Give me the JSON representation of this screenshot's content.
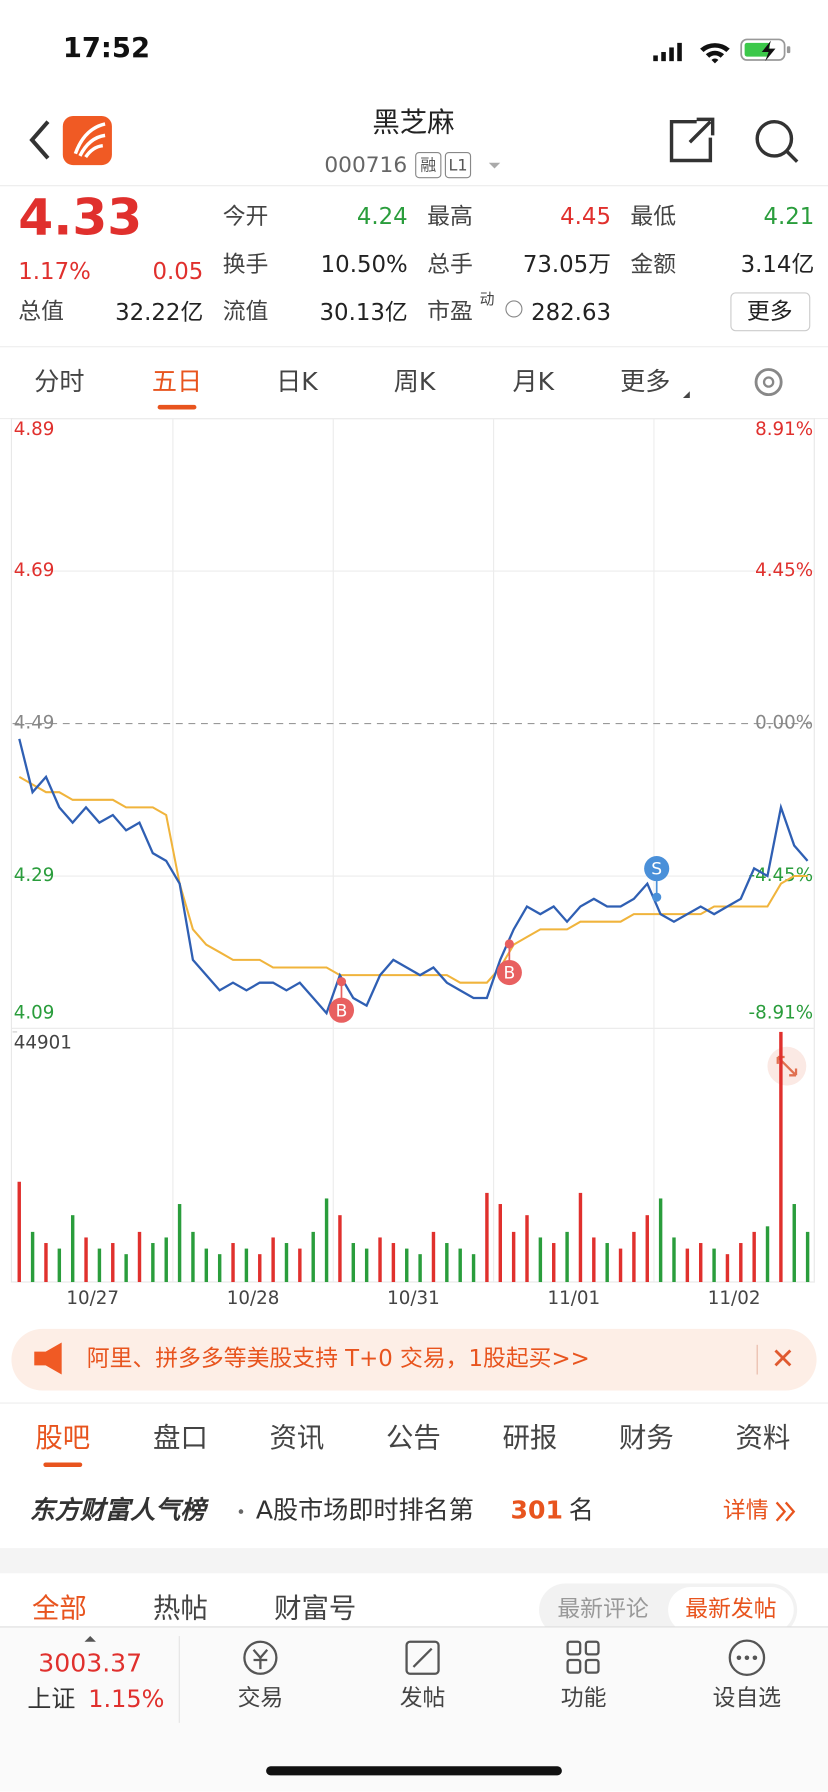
{
  "status_bar": {
    "time": "17:52"
  },
  "header": {
    "title": "黑芝麻",
    "code": "000716",
    "badges": [
      "融",
      "L1"
    ]
  },
  "quote": {
    "price": "4.33",
    "change_pct": "1.17%",
    "change": "0.05",
    "fields": [
      {
        "label": "今开",
        "value": "4.24"
      },
      {
        "label": "最高",
        "value": "4.45"
      },
      {
        "label": "最低",
        "value": "4.21"
      },
      {
        "label": "换手",
        "value": "10.50%"
      },
      {
        "label": "总手",
        "value": "73.05万"
      },
      {
        "label": "金额",
        "value": "3.14亿"
      },
      {
        "label": "总值",
        "value": "32.22亿"
      },
      {
        "label": "流值",
        "value": "30.13亿"
      },
      {
        "label": "市盈",
        "sup": "动",
        "value": "282.63"
      }
    ],
    "more": "更多"
  },
  "chart_tabs": [
    "分时",
    "五日",
    "日K",
    "周K",
    "月K",
    "更多"
  ],
  "chart_data": {
    "type": "line",
    "categories": [
      null,
      null,
      null,
      null,
      null,
      null,
      null,
      null,
      null,
      null,
      null,
      null,
      null,
      null,
      null,
      null,
      null,
      null,
      null,
      null,
      null,
      null,
      null,
      null,
      null,
      null,
      null,
      null,
      null,
      null,
      null,
      null,
      null,
      null,
      null,
      null,
      null,
      null,
      null,
      null,
      null,
      null,
      null,
      null,
      null,
      null,
      null,
      null,
      null,
      null,
      null,
      null,
      null,
      null,
      null,
      null,
      null,
      null,
      null,
      null
    ],
    "dates": [
      "10/27",
      "10/28",
      "10/31",
      "11/01",
      "11/02"
    ],
    "ylim": [
      4.09,
      4.89
    ],
    "yticks": [
      4.89,
      4.69,
      4.49,
      4.29,
      4.09
    ],
    "ref_line": 4.49,
    "pct_labels": [
      "8.91%",
      "4.45%",
      "0.00%",
      "-4.45%",
      "-8.91%"
    ],
    "up_color": "#e0302d",
    "down_color": "#2a9d3c",
    "series": [
      {
        "name": "price",
        "color": "#2f5fb3",
        "values": [
          4.47,
          4.4,
          4.42,
          4.38,
          4.36,
          4.38,
          4.36,
          4.37,
          4.35,
          4.36,
          4.32,
          4.31,
          4.28,
          4.18,
          4.16,
          4.14,
          4.15,
          4.14,
          4.15,
          4.15,
          4.14,
          4.15,
          4.13,
          4.11,
          4.16,
          4.13,
          4.12,
          4.16,
          4.18,
          4.17,
          4.16,
          4.17,
          4.15,
          4.14,
          4.13,
          4.13,
          4.18,
          4.22,
          4.25,
          4.24,
          4.25,
          4.23,
          4.25,
          4.26,
          4.25,
          4.25,
          4.26,
          4.28,
          4.24,
          4.23,
          4.24,
          4.25,
          4.24,
          4.25,
          4.26,
          4.3,
          4.29,
          4.38,
          4.33,
          4.31
        ]
      },
      {
        "name": "average",
        "color": "#f0b43c",
        "values": [
          4.42,
          4.41,
          4.4,
          4.4,
          4.39,
          4.39,
          4.39,
          4.39,
          4.38,
          4.38,
          4.38,
          4.37,
          4.28,
          4.22,
          4.2,
          4.19,
          4.18,
          4.18,
          4.18,
          4.17,
          4.17,
          4.17,
          4.17,
          4.17,
          4.16,
          4.16,
          4.16,
          4.16,
          4.16,
          4.16,
          4.16,
          4.16,
          4.16,
          4.15,
          4.15,
          4.15,
          4.17,
          4.2,
          4.21,
          4.22,
          4.22,
          4.22,
          4.23,
          4.23,
          4.23,
          4.23,
          4.24,
          4.24,
          4.24,
          4.24,
          4.24,
          4.24,
          4.25,
          4.25,
          4.25,
          4.25,
          4.25,
          4.28,
          4.29,
          4.29
        ]
      }
    ],
    "volume": {
      "ylim": [
        0,
        44901
      ],
      "yticks": [
        44901
      ],
      "values": [
        18000,
        9000,
        7000,
        6000,
        12000,
        8000,
        6000,
        7000,
        5000,
        9000,
        7000,
        8000,
        14000,
        9000,
        6000,
        5000,
        7000,
        6000,
        5000,
        8000,
        7000,
        6000,
        9000,
        15000,
        12000,
        7000,
        6000,
        8000,
        7000,
        6000,
        5000,
        9000,
        7000,
        6000,
        5000,
        16000,
        14000,
        9000,
        12000,
        8000,
        7000,
        9000,
        16000,
        8000,
        7000,
        6000,
        9000,
        12000,
        15000,
        8000,
        6000,
        7000,
        6000,
        5000,
        7000,
        9000,
        10000,
        44901,
        14000,
        9000
      ]
    },
    "trade_marks": [
      "B",
      "B",
      "S"
    ]
  },
  "banner": {
    "text": "阿里、拼多多等美股支持 T+0 交易，1股起买>>"
  },
  "section_tabs": [
    "股吧",
    "盘口",
    "资讯",
    "公告",
    "研报",
    "财务",
    "资料"
  ],
  "rank": {
    "brand": "东方财富人气榜",
    "text": "A股市场即时排名第",
    "rank": "301",
    "unit": "名",
    "link": "详情"
  },
  "post_tabs": [
    "全部",
    "热帖",
    "财富号"
  ],
  "sort_tabs": [
    "最新评论",
    "最新发帖"
  ],
  "bottom_nav": {
    "index_value": "3003.37",
    "index_name": "上证",
    "index_change": "1.15%",
    "items": [
      "交易",
      "发帖",
      "功能",
      "设自选"
    ]
  }
}
